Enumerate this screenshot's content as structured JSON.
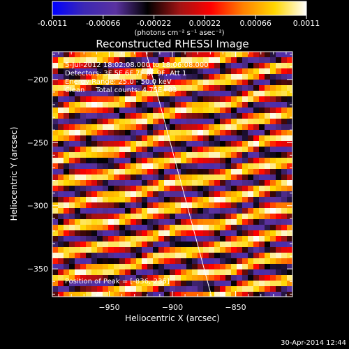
{
  "chart_data": {
    "type": "heatmap",
    "title": "Reconstructed RHESSI Image",
    "xlabel": "Heliocentric X (arcsec)",
    "ylabel": "Heliocentric Y (arcsec)",
    "xlim": [
      -995,
      -805
    ],
    "ylim": [
      -372,
      -178
    ],
    "x_ticks": [
      -950,
      -900,
      -850
    ],
    "y_ticks": [
      -200,
      -250,
      -300,
      -350
    ],
    "colorbar": {
      "label": "(photons cm⁻² s⁻¹ asec⁻²)",
      "range": [
        -0.0011,
        0.0011
      ],
      "ticks": [
        "-0.0011",
        "-0.00066",
        "-0.00022",
        "0.00022",
        "0.00066",
        "0.0011"
      ],
      "colormap": [
        "#0000ff",
        "#3c28b4",
        "#5a32a0",
        "#000000",
        "#a01414",
        "#ff0000",
        "#ff8000",
        "#ffd700",
        "#ffffff"
      ]
    },
    "annotations": [
      "5-Jul-2012 18:02:08.000 to 18:06:08.000",
      "Detectors: 3F 5F 6F 7F 8F 9F, Att 1",
      "Energy Range: 25.0 - 50.0 keV",
      "Clean     Total counts: 4.75E+03"
    ],
    "peak_label": "Position of Peak = [-836,-235]",
    "limb_line": {
      "x_start": -921,
      "y_start": -178,
      "x_end": -869,
      "y_end": -372
    },
    "stripes": {
      "slope": 0.2,
      "period": 34,
      "peak_offset": 47
    }
  },
  "footer": {
    "timestamp": "30-Apr-2014 12:44"
  }
}
